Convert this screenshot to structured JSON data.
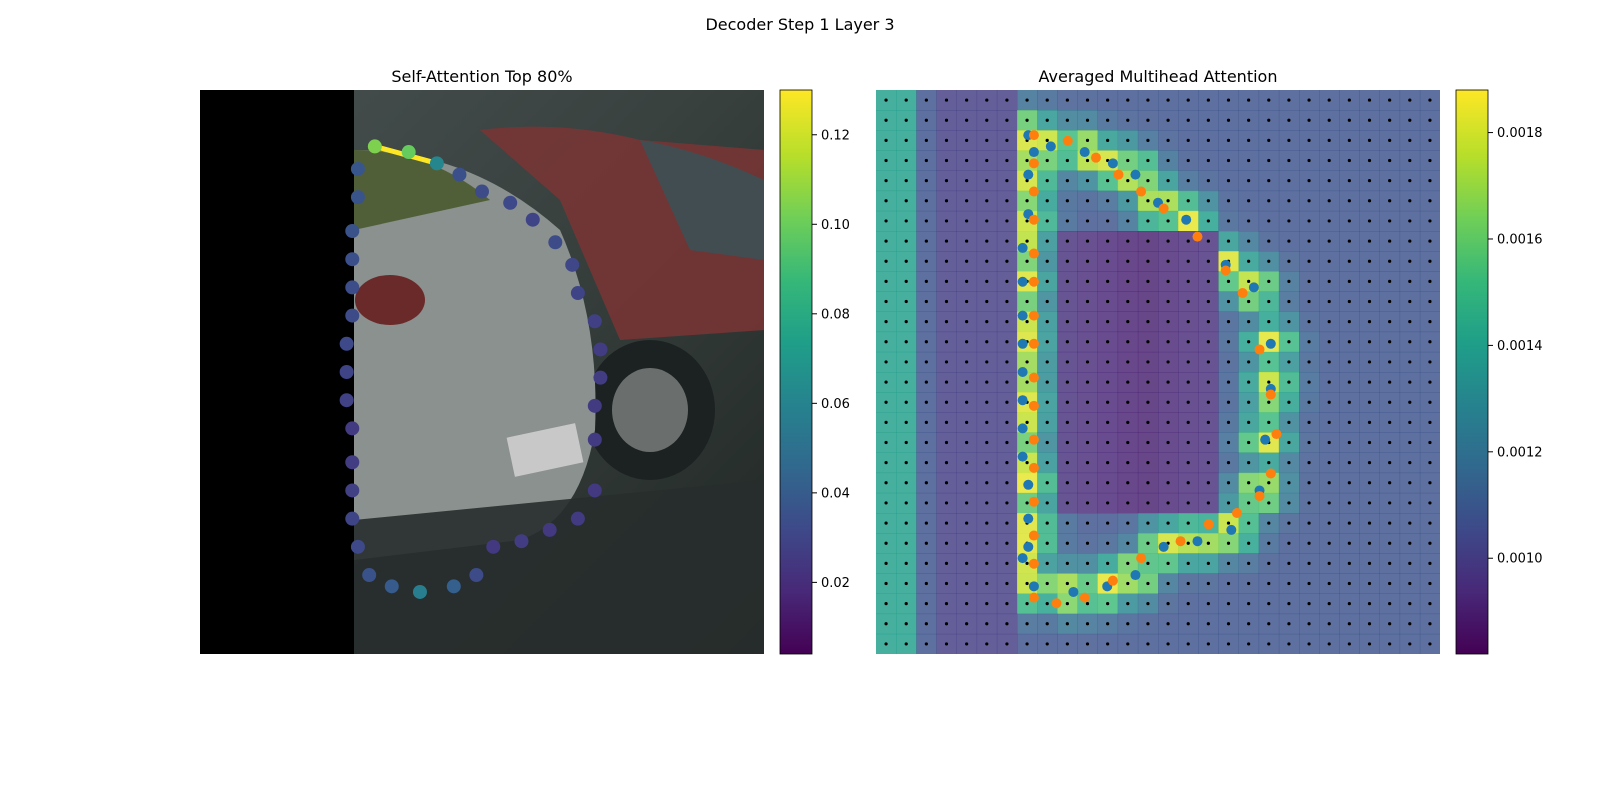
{
  "figure_title": "Decoder Step 1 Layer 3",
  "colors": {
    "viridis": [
      "#440154",
      "#482878",
      "#3e4989",
      "#31688e",
      "#26828e",
      "#1f9e89",
      "#35b779",
      "#6ece58",
      "#b5de2b",
      "#fde725"
    ],
    "ref_points": "#1f77b4",
    "pred_points": "#ff7f0e",
    "grid_dots": "#000000"
  },
  "chart_data": [
    {
      "type": "scatter",
      "title": "Self-Attention Top 80%",
      "xlim": [
        0,
        1
      ],
      "ylim": [
        0,
        1
      ],
      "background": "photo of parked cars, left region masked black",
      "points": [
        {
          "x": 0.31,
          "y": 0.9,
          "w": 0.105
        },
        {
          "x": 0.37,
          "y": 0.89,
          "w": 0.1
        },
        {
          "x": 0.42,
          "y": 0.87,
          "w": 0.062
        },
        {
          "x": 0.46,
          "y": 0.85,
          "w": 0.035
        },
        {
          "x": 0.5,
          "y": 0.82,
          "w": 0.033
        },
        {
          "x": 0.55,
          "y": 0.8,
          "w": 0.032
        },
        {
          "x": 0.59,
          "y": 0.77,
          "w": 0.03
        },
        {
          "x": 0.63,
          "y": 0.73,
          "w": 0.033
        },
        {
          "x": 0.66,
          "y": 0.69,
          "w": 0.031
        },
        {
          "x": 0.67,
          "y": 0.64,
          "w": 0.03
        },
        {
          "x": 0.7,
          "y": 0.59,
          "w": 0.028
        },
        {
          "x": 0.71,
          "y": 0.54,
          "w": 0.027
        },
        {
          "x": 0.71,
          "y": 0.49,
          "w": 0.027
        },
        {
          "x": 0.7,
          "y": 0.44,
          "w": 0.026
        },
        {
          "x": 0.7,
          "y": 0.38,
          "w": 0.026
        },
        {
          "x": 0.7,
          "y": 0.29,
          "w": 0.025
        },
        {
          "x": 0.67,
          "y": 0.24,
          "w": 0.026
        },
        {
          "x": 0.62,
          "y": 0.22,
          "w": 0.025
        },
        {
          "x": 0.57,
          "y": 0.2,
          "w": 0.027
        },
        {
          "x": 0.52,
          "y": 0.19,
          "w": 0.025
        },
        {
          "x": 0.49,
          "y": 0.14,
          "w": 0.033
        },
        {
          "x": 0.45,
          "y": 0.12,
          "w": 0.042
        },
        {
          "x": 0.39,
          "y": 0.11,
          "w": 0.058
        },
        {
          "x": 0.34,
          "y": 0.12,
          "w": 0.04
        },
        {
          "x": 0.3,
          "y": 0.14,
          "w": 0.036
        },
        {
          "x": 0.28,
          "y": 0.19,
          "w": 0.032
        },
        {
          "x": 0.27,
          "y": 0.24,
          "w": 0.03
        },
        {
          "x": 0.27,
          "y": 0.29,
          "w": 0.028
        },
        {
          "x": 0.27,
          "y": 0.34,
          "w": 0.027
        },
        {
          "x": 0.27,
          "y": 0.4,
          "w": 0.026
        },
        {
          "x": 0.26,
          "y": 0.45,
          "w": 0.029
        },
        {
          "x": 0.26,
          "y": 0.5,
          "w": 0.03
        },
        {
          "x": 0.26,
          "y": 0.55,
          "w": 0.032
        },
        {
          "x": 0.27,
          "y": 0.6,
          "w": 0.033
        },
        {
          "x": 0.27,
          "y": 0.65,
          "w": 0.034
        },
        {
          "x": 0.27,
          "y": 0.7,
          "w": 0.035
        },
        {
          "x": 0.27,
          "y": 0.75,
          "w": 0.036
        },
        {
          "x": 0.28,
          "y": 0.81,
          "w": 0.037
        },
        {
          "x": 0.28,
          "y": 0.86,
          "w": 0.038
        }
      ],
      "highlight_segment": {
        "from": [
          0.31,
          0.9
        ],
        "to": [
          0.42,
          0.87
        ],
        "w": 0.13
      },
      "colorbar": {
        "range": [
          0.004,
          0.13
        ],
        "ticks": [
          "0.02",
          "0.04",
          "0.06",
          "0.08",
          "0.10",
          "0.12"
        ],
        "tick_values": [
          0.02,
          0.04,
          0.06,
          0.08,
          0.1,
          0.12
        ]
      }
    },
    {
      "type": "heatmap",
      "title": "Averaged Multihead Attention",
      "xlim": [
        0,
        1
      ],
      "ylim": [
        0,
        1
      ],
      "grid": "dot grid overlay",
      "reference_points": [
        {
          "x": 0.27,
          "y": 0.92
        },
        {
          "x": 0.31,
          "y": 0.9
        },
        {
          "x": 0.37,
          "y": 0.89
        },
        {
          "x": 0.42,
          "y": 0.87
        },
        {
          "x": 0.46,
          "y": 0.85
        },
        {
          "x": 0.5,
          "y": 0.8
        },
        {
          "x": 0.55,
          "y": 0.77
        },
        {
          "x": 0.62,
          "y": 0.69
        },
        {
          "x": 0.67,
          "y": 0.65
        },
        {
          "x": 0.7,
          "y": 0.55
        },
        {
          "x": 0.7,
          "y": 0.47
        },
        {
          "x": 0.69,
          "y": 0.38
        },
        {
          "x": 0.68,
          "y": 0.29
        },
        {
          "x": 0.63,
          "y": 0.22
        },
        {
          "x": 0.57,
          "y": 0.2
        },
        {
          "x": 0.51,
          "y": 0.19
        },
        {
          "x": 0.46,
          "y": 0.14
        },
        {
          "x": 0.41,
          "y": 0.12
        },
        {
          "x": 0.35,
          "y": 0.11
        },
        {
          "x": 0.28,
          "y": 0.12
        },
        {
          "x": 0.26,
          "y": 0.17
        },
        {
          "x": 0.27,
          "y": 0.19
        },
        {
          "x": 0.27,
          "y": 0.24
        },
        {
          "x": 0.27,
          "y": 0.3
        },
        {
          "x": 0.26,
          "y": 0.35
        },
        {
          "x": 0.26,
          "y": 0.4
        },
        {
          "x": 0.26,
          "y": 0.45
        },
        {
          "x": 0.26,
          "y": 0.5
        },
        {
          "x": 0.26,
          "y": 0.55
        },
        {
          "x": 0.26,
          "y": 0.6
        },
        {
          "x": 0.26,
          "y": 0.66
        },
        {
          "x": 0.26,
          "y": 0.72
        },
        {
          "x": 0.27,
          "y": 0.78
        },
        {
          "x": 0.27,
          "y": 0.85
        },
        {
          "x": 0.28,
          "y": 0.89
        }
      ],
      "predicted_points": [
        {
          "x": 0.28,
          "y": 0.92
        },
        {
          "x": 0.34,
          "y": 0.91
        },
        {
          "x": 0.39,
          "y": 0.88
        },
        {
          "x": 0.43,
          "y": 0.85
        },
        {
          "x": 0.47,
          "y": 0.82
        },
        {
          "x": 0.51,
          "y": 0.79
        },
        {
          "x": 0.57,
          "y": 0.74
        },
        {
          "x": 0.62,
          "y": 0.68
        },
        {
          "x": 0.65,
          "y": 0.64
        },
        {
          "x": 0.68,
          "y": 0.54
        },
        {
          "x": 0.7,
          "y": 0.46
        },
        {
          "x": 0.71,
          "y": 0.39
        },
        {
          "x": 0.7,
          "y": 0.32
        },
        {
          "x": 0.68,
          "y": 0.28
        },
        {
          "x": 0.64,
          "y": 0.25
        },
        {
          "x": 0.59,
          "y": 0.23
        },
        {
          "x": 0.54,
          "y": 0.2
        },
        {
          "x": 0.47,
          "y": 0.17
        },
        {
          "x": 0.42,
          "y": 0.13
        },
        {
          "x": 0.37,
          "y": 0.1
        },
        {
          "x": 0.32,
          "y": 0.09
        },
        {
          "x": 0.28,
          "y": 0.1
        },
        {
          "x": 0.28,
          "y": 0.16
        },
        {
          "x": 0.28,
          "y": 0.21
        },
        {
          "x": 0.28,
          "y": 0.27
        },
        {
          "x": 0.28,
          "y": 0.33
        },
        {
          "x": 0.28,
          "y": 0.38
        },
        {
          "x": 0.28,
          "y": 0.44
        },
        {
          "x": 0.28,
          "y": 0.49
        },
        {
          "x": 0.28,
          "y": 0.55
        },
        {
          "x": 0.28,
          "y": 0.6
        },
        {
          "x": 0.28,
          "y": 0.66
        },
        {
          "x": 0.28,
          "y": 0.71
        },
        {
          "x": 0.28,
          "y": 0.77
        },
        {
          "x": 0.28,
          "y": 0.82
        },
        {
          "x": 0.28,
          "y": 0.87
        }
      ],
      "colorbar": {
        "range": [
          0.00082,
          0.00188
        ],
        "ticks": [
          "0.0010",
          "0.0012",
          "0.0014",
          "0.0016",
          "0.0018"
        ],
        "tick_values": [
          0.001,
          0.0012,
          0.0014,
          0.0016,
          0.0018
        ]
      }
    }
  ]
}
